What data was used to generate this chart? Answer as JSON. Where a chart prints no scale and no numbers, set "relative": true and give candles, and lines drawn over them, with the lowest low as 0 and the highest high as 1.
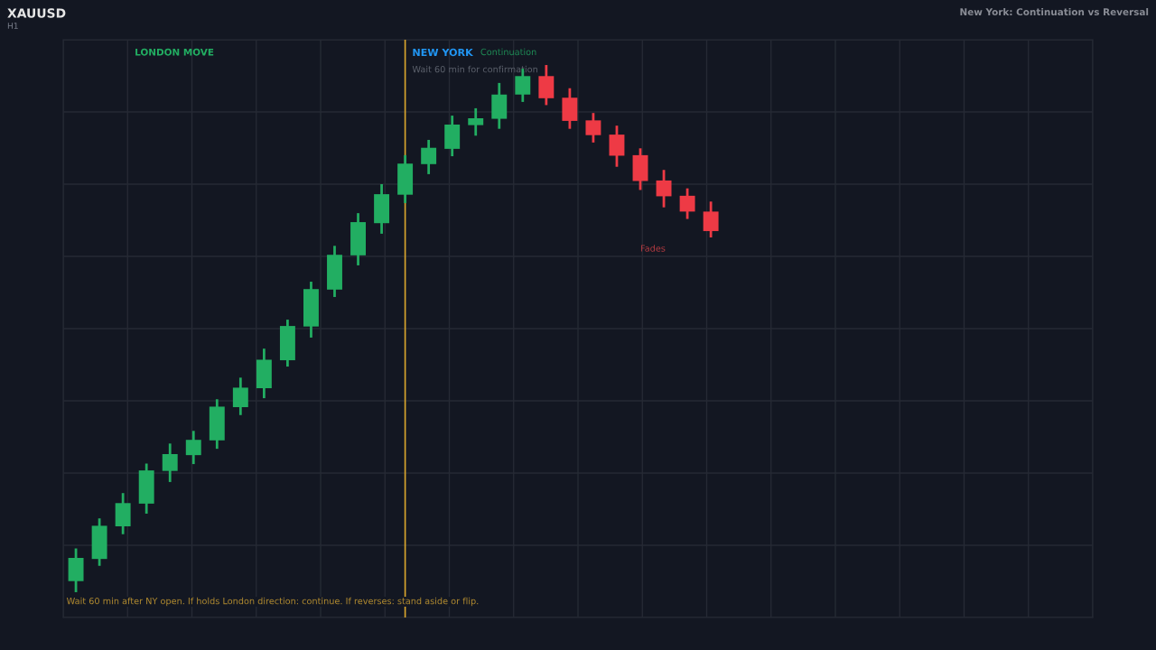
{
  "chart_data": {
    "type": "candlestick",
    "title": "XAUUSD",
    "subtitle": "H1",
    "relative": true,
    "categories": [
      null,
      null,
      null,
      null,
      null,
      null,
      null,
      null,
      null,
      null,
      null,
      null,
      null,
      null,
      null,
      null,
      null,
      null,
      null,
      null,
      null,
      null,
      null,
      null,
      null,
      null,
      null,
      null
    ],
    "ohlc": [
      [
        0.021,
        0.083,
        0,
        0.065
      ],
      [
        0.063,
        0.14,
        0.05,
        0.126
      ],
      [
        0.125,
        0.188,
        0.11,
        0.169
      ],
      [
        0.168,
        0.244,
        0.149,
        0.231
      ],
      [
        0.23,
        0.282,
        0.209,
        0.262
      ],
      [
        0.26,
        0.306,
        0.243,
        0.289
      ],
      [
        0.288,
        0.366,
        0.272,
        0.352
      ],
      [
        0.351,
        0.407,
        0.336,
        0.388
      ],
      [
        0.387,
        0.462,
        0.368,
        0.441
      ],
      [
        0.44,
        0.517,
        0.428,
        0.505
      ],
      [
        0.504,
        0.589,
        0.483,
        0.575
      ],
      [
        0.574,
        0.657,
        0.56,
        0.64
      ],
      [
        0.639,
        0.719,
        0.62,
        0.702
      ],
      [
        0.7,
        0.774,
        0.68,
        0.755
      ],
      [
        0.754,
        0.829,
        0.738,
        0.813
      ],
      [
        0.812,
        0.858,
        0.793,
        0.843
      ],
      [
        0.841,
        0.904,
        0.827,
        0.887
      ],
      [
        0.886,
        0.918,
        0.866,
        0.899
      ],
      [
        0.898,
        0.966,
        0.879,
        0.944
      ],
      [
        0.944,
        0.993,
        0.93,
        0.979
      ],
      [
        0.979,
        1,
        0.924,
        0.937
      ],
      [
        0.938,
        0.956,
        0.879,
        0.894
      ],
      [
        0.895,
        0.909,
        0.853,
        0.867
      ],
      [
        0.868,
        0.885,
        0.807,
        0.828
      ],
      [
        0.829,
        0.842,
        0.763,
        0.78
      ],
      [
        0.781,
        0.801,
        0.73,
        0.751
      ],
      [
        0.752,
        0.766,
        0.708,
        0.722
      ],
      [
        0.722,
        0.741,
        0.673,
        0.685
      ]
    ],
    "colors": [
      "#22ae62",
      "#22ae62",
      "#22ae62",
      "#22ae62",
      "#22ae62",
      "#22ae62",
      "#22ae62",
      "#22ae62",
      "#22ae62",
      "#22ae62",
      "#22ae62",
      "#22ae62",
      "#22ae62",
      "#22ae62",
      "#22ae62",
      "#22ae62",
      "#22ae62",
      "#22ae62",
      "#22ae62",
      "#22ae62",
      "#ee3a45",
      "#ee3a45",
      "#ee3a45",
      "#ee3a45",
      "#ee3a45",
      "#ee3a45",
      "#ee3a45",
      "#ee3a45"
    ],
    "annotations": [
      "New York: Continuation vs Reversal",
      "NEW YORK",
      "LONDON MOVE",
      "Wait 60 min for confirmation",
      "Continuation",
      "Fades",
      "Wait 60 min after NY open. If holds London direction: continue. If reverses: stand aside or flip."
    ],
    "grid": true,
    "tick_labels": false
  }
}
